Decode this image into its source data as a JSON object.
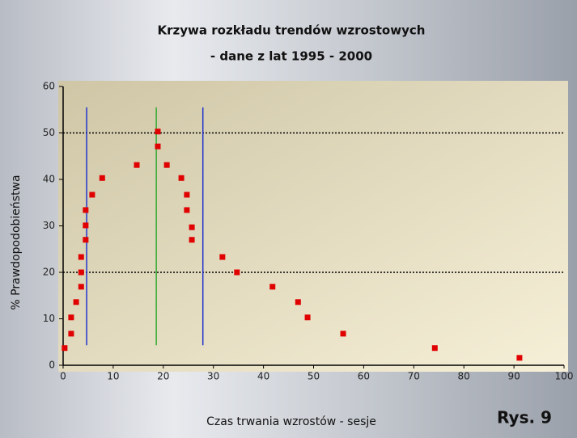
{
  "chart_data": {
    "type": "scatter",
    "title": "Krzywa rozkładu trendów wzrostowych",
    "subtitle": "- dane z lat 1995 - 2000",
    "x_label": "Czas trwania wzrostów - sesje",
    "y_label": "% Prawdopodobieństwa",
    "annotation": "Rys. 9",
    "color": "#e00000",
    "x": [
      0.3,
      1.6,
      1.6,
      2.6,
      3.6,
      3.6,
      3.6,
      4.5,
      4.5,
      4.5,
      5.8,
      7.8,
      14.7,
      18.9,
      18.9,
      20.7,
      23.6,
      24.7,
      24.7,
      25.7,
      25.7,
      31.8,
      34.7,
      41.8,
      46.9,
      48.8,
      55.9,
      74.2,
      91.1
    ],
    "values": [
      3.7,
      6.8,
      10.3,
      13.6,
      16.9,
      20,
      23.3,
      27,
      30.1,
      33.4,
      36.7,
      40.3,
      43.1,
      47.1,
      50.3,
      43.1,
      40.3,
      36.7,
      33.4,
      29.7,
      27,
      23.3,
      20,
      16.9,
      13.6,
      10.3,
      6.8,
      3.7,
      1.6
    ],
    "xlim": [
      0,
      100
    ],
    "xticks": [
      0,
      10,
      20,
      30,
      40,
      50,
      60,
      70,
      80,
      90,
      100
    ],
    "ylim": [
      0,
      60
    ],
    "yticks": [
      0,
      10,
      20,
      30,
      40,
      50,
      60
    ],
    "hlines": [
      50,
      20
    ],
    "vlines": [
      {
        "x": 4.7,
        "y": [
          4.3,
          55.5
        ],
        "color": "#2233cc"
      },
      {
        "x": 18.6,
        "y": [
          4.3,
          55.5
        ],
        "color": "#33aa33"
      },
      {
        "x": 27.9,
        "y": [
          4.3,
          55.5
        ],
        "color": "#2233cc"
      }
    ]
  }
}
